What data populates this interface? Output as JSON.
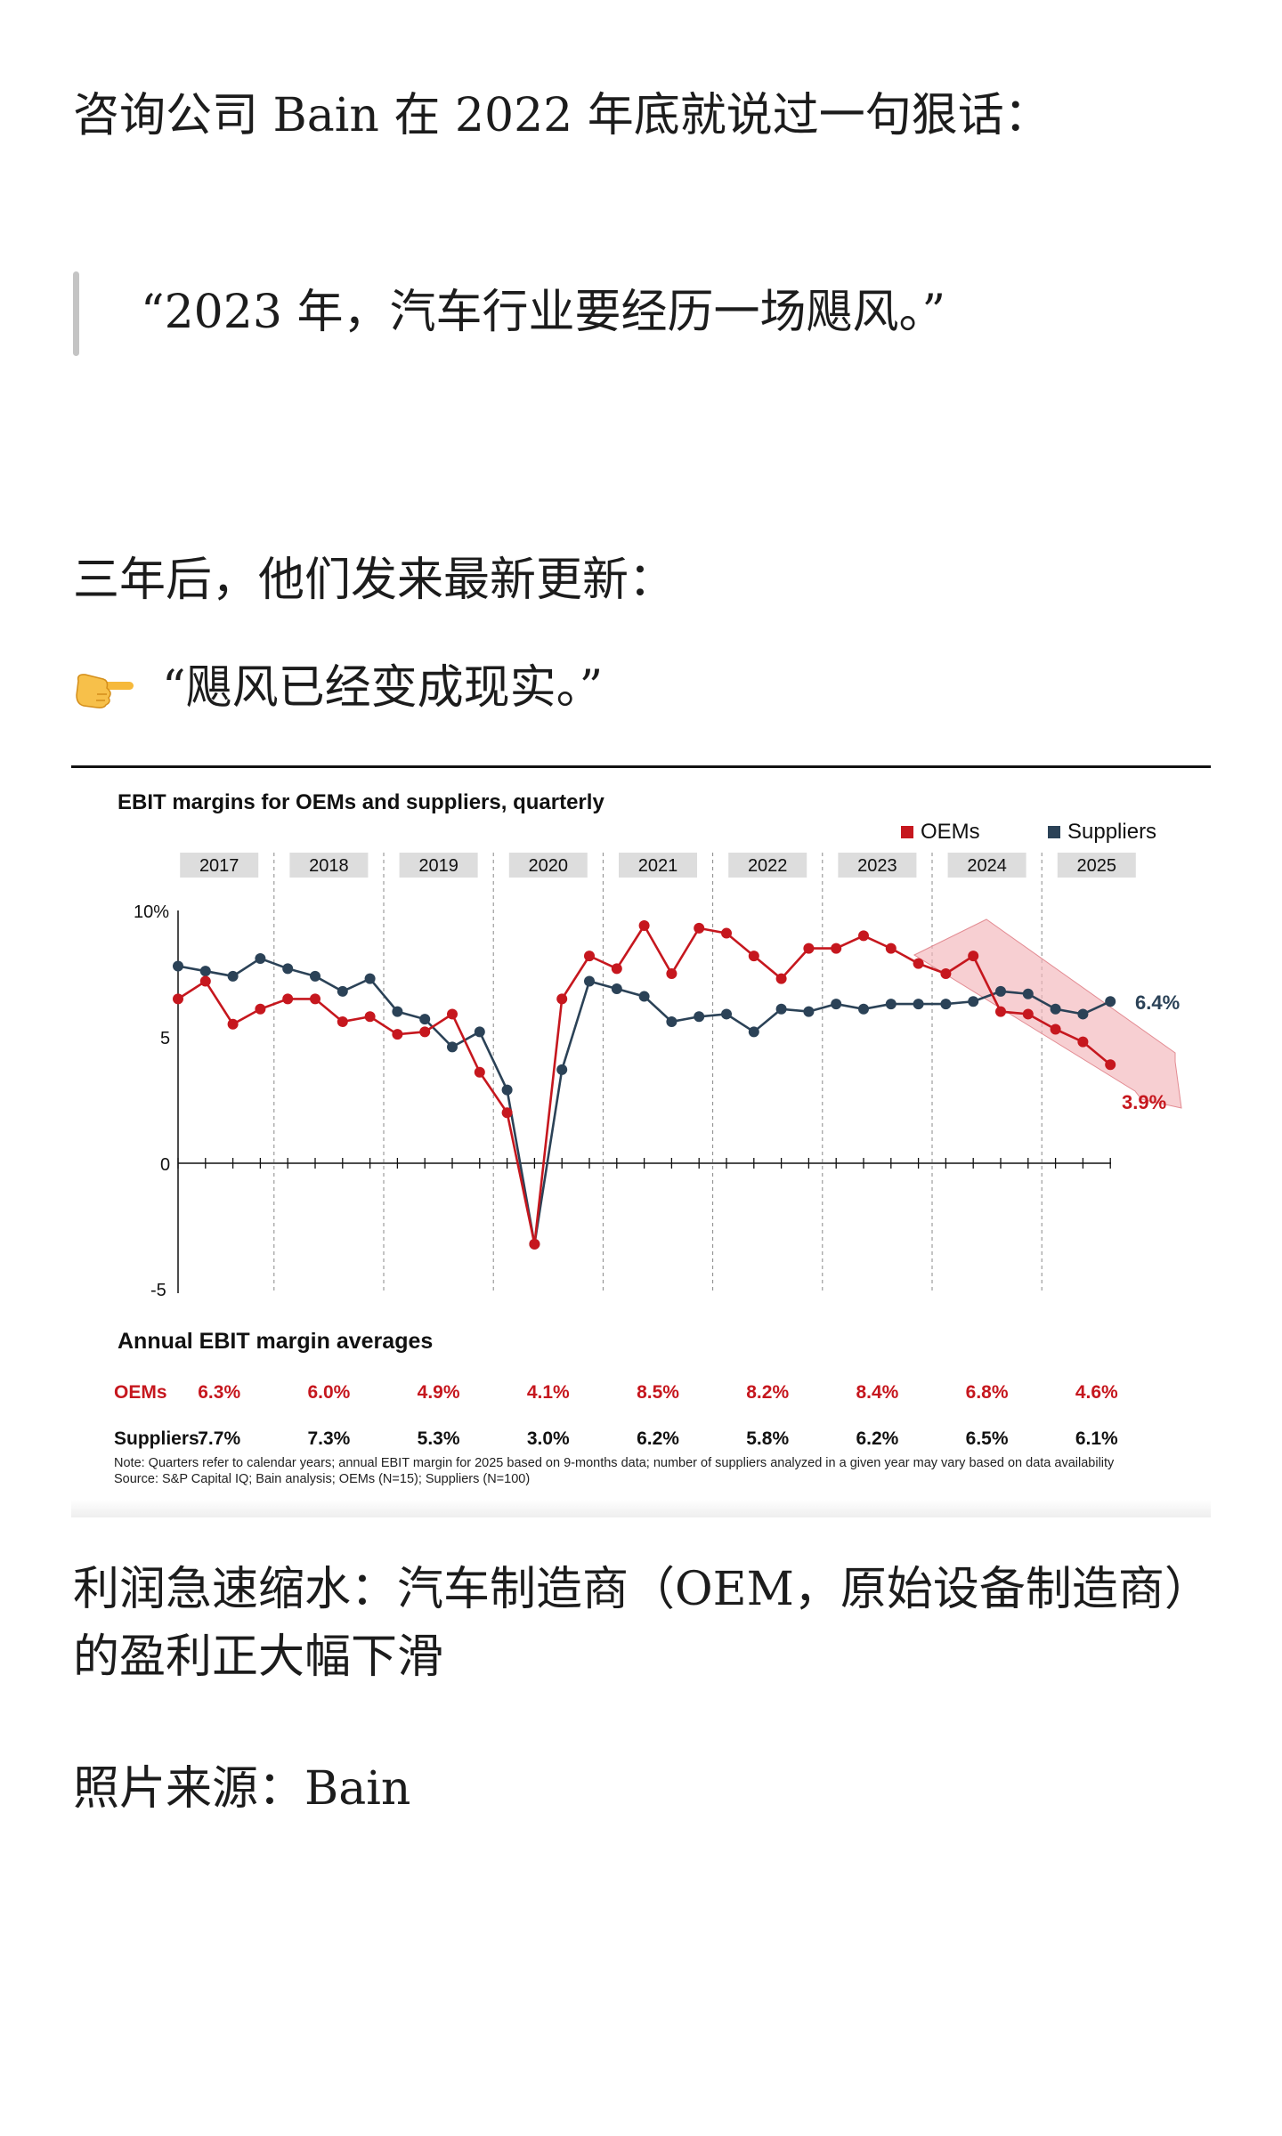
{
  "article": {
    "intro": "咨询公司 Bain 在 2022 年底就说过一句狠话：",
    "quote1": "“2023 年，汽车行业要经历一场飓风。”",
    "three_years": "三年后，他们发来最新更新：",
    "quote2_icon": "backhand-index-pointing-right-icon",
    "quote2": "“飓风已经变成现实。”",
    "profit": "利润急速缩水：汽车制造商（OEM，原始设备制造商）的盈利正大幅下滑",
    "source": "照片来源：Bain"
  },
  "chart_data": {
    "type": "line",
    "title": "EBIT margins for OEMs and suppliers, quarterly",
    "years": [
      "2017",
      "2018",
      "2019",
      "2020",
      "2021",
      "2022",
      "2023",
      "2024",
      "2025"
    ],
    "ylim": [
      -5,
      10
    ],
    "yticks": [
      "10%",
      "5",
      "0",
      "-5"
    ],
    "legend_position": "top-right",
    "series": [
      {
        "name": "OEMs",
        "color": "#c6171e",
        "values": [
          6.5,
          7.2,
          5.5,
          6.1,
          6.5,
          6.5,
          5.6,
          5.8,
          5.1,
          5.2,
          5.9,
          3.6,
          2.0,
          -3.2,
          6.5,
          8.2,
          7.7,
          9.4,
          7.5,
          9.3,
          9.1,
          8.2,
          7.3,
          8.5,
          8.5,
          9.0,
          8.5,
          7.9,
          7.5,
          8.2,
          6.0,
          5.9,
          5.3,
          4.8,
          3.9
        ],
        "end_label": "3.9%"
      },
      {
        "name": "Suppliers",
        "color": "#2b4257",
        "values": [
          7.8,
          7.6,
          7.4,
          8.1,
          7.7,
          7.4,
          6.8,
          7.3,
          6.0,
          5.7,
          4.6,
          5.2,
          2.9,
          -3.2,
          3.7,
          7.2,
          6.9,
          6.6,
          5.6,
          5.8,
          5.9,
          5.2,
          6.1,
          6.0,
          6.3,
          6.1,
          6.3,
          6.3,
          6.3,
          6.4,
          6.8,
          6.7,
          6.1,
          5.9,
          6.4
        ],
        "end_label": "6.4%"
      }
    ],
    "annual_title": "Annual EBIT margin averages",
    "annual": {
      "oems_label": "OEMs",
      "oems": [
        "6.3%",
        "6.0%",
        "4.9%",
        "4.1%",
        "8.5%",
        "8.2%",
        "8.4%",
        "6.8%",
        "4.6%"
      ],
      "suppliers_label": "Suppliers",
      "suppliers": [
        "7.7%",
        "7.3%",
        "5.3%",
        "3.0%",
        "6.2%",
        "5.8%",
        "6.2%",
        "6.5%",
        "6.1%"
      ]
    },
    "note": "Note: Quarters refer to calendar years; annual EBIT margin for 2025 based on 9-months data; number of suppliers analyzed in a given year may vary based on data availability",
    "source": "Source: S&P Capital IQ; Bain analysis; OEMs (N=15); Suppliers (N=100)"
  }
}
